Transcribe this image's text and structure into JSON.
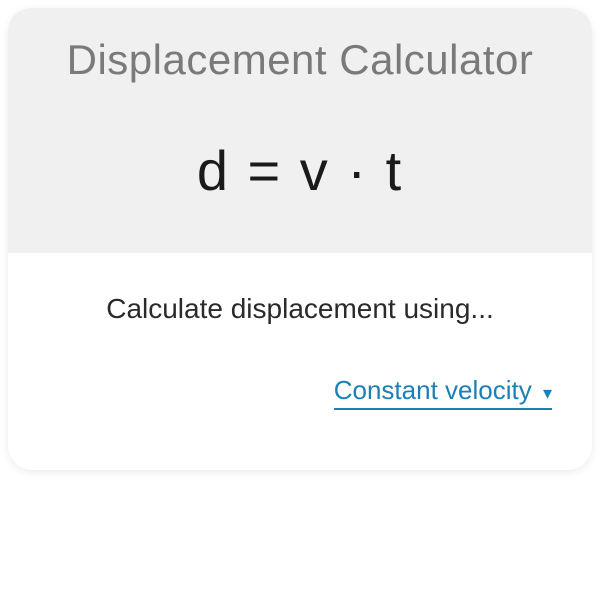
{
  "card": {
    "title": "Displacement Calculator",
    "formula": "d  =  v  ·  t",
    "prompt": "Calculate displacement using...",
    "dropdown": {
      "selected": "Constant velocity",
      "caret": "▾"
    },
    "colors": {
      "card_bg": "#f0f0f0",
      "content_bg": "#ffffff",
      "title_color": "#7a7a7a",
      "formula_color": "#1a1a1a",
      "prompt_color": "#2a2a2a",
      "link_color": "#1b7fb8"
    },
    "typography": {
      "title_fontsize": 42,
      "formula_fontsize": 56,
      "prompt_fontsize": 28,
      "dropdown_fontsize": 26
    }
  }
}
